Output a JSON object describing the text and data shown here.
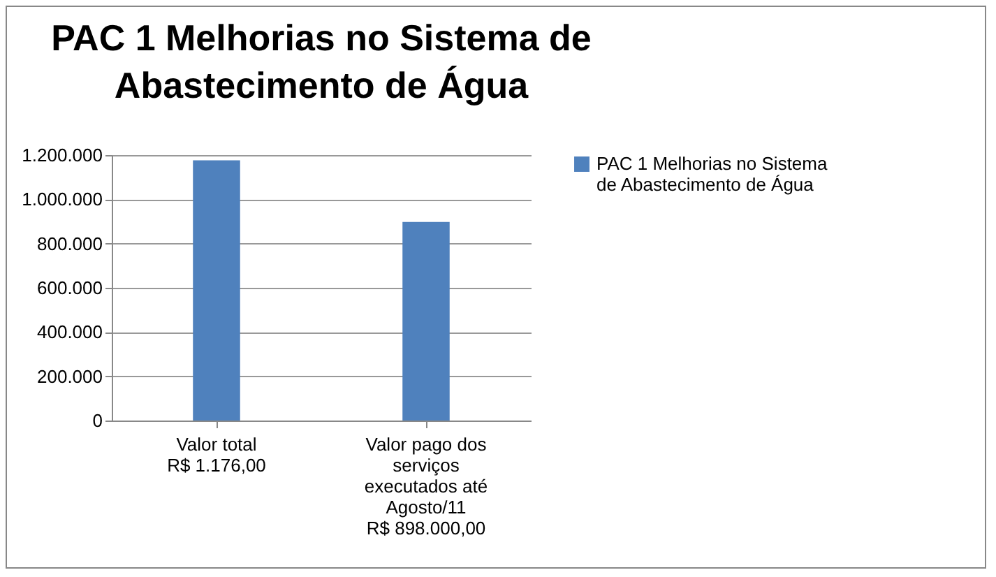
{
  "chart_data": {
    "type": "bar",
    "title": "PAC 1 Melhorias no Sistema de Abastecimento de Água",
    "categories": [
      "Valor total\nR$ 1.176,00",
      "Valor pago dos\nserviços\nexecutados até\nAgosto/11\nR$ 898.000,00"
    ],
    "series": [
      {
        "name": "PAC 1 Melhorias no Sistema de Abastecimento de Água",
        "color": "#4f81bd",
        "values": [
          1176000,
          898000
        ]
      }
    ],
    "ylim": [
      0,
      1200000
    ],
    "yticks": [
      {
        "value": 0,
        "label": "0"
      },
      {
        "value": 200000,
        "label": "200.000"
      },
      {
        "value": 400000,
        "label": "400.000"
      },
      {
        "value": 600000,
        "label": "600.000"
      },
      {
        "value": 800000,
        "label": "800.000"
      },
      {
        "value": 1000000,
        "label": "1.000.000"
      },
      {
        "value": 1200000,
        "label": "1.200.000"
      }
    ],
    "grid": "y",
    "legend": "right"
  }
}
